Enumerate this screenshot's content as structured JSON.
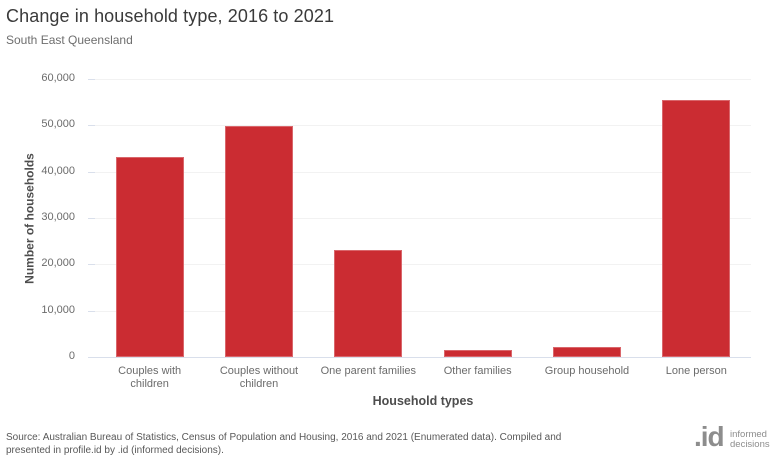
{
  "header": {
    "title": "Change in household type, 2016 to 2021",
    "subtitle": "South East Queensland"
  },
  "chart_data": {
    "type": "bar",
    "categories": [
      "Couples with children",
      "Couples without children",
      "One parent families",
      "Other families",
      "Group household",
      "Lone person"
    ],
    "values": [
      43200,
      49900,
      23200,
      1600,
      2100,
      55500
    ],
    "title": "Change in household type, 2016 to 2021",
    "subtitle": "South East Queensland",
    "xlabel": "Household types",
    "ylabel": "Number of households",
    "ylim": [
      0,
      60000
    ],
    "ytick_interval": 10000,
    "ytick_labels": [
      "0",
      "10,000",
      "20,000",
      "30,000",
      "40,000",
      "50,000",
      "60,000"
    ],
    "bar_color": "#cb2c32",
    "grid": true,
    "legend": false
  },
  "footer": {
    "source": "Source: Australian Bureau of Statistics, Census of Population and Housing, 2016 and 2021 (Enumerated data). Compiled and presented in profile.id by .id (informed decisions).",
    "logo": {
      "mark": ".id",
      "line1": "informed",
      "line2": "decisions"
    }
  }
}
